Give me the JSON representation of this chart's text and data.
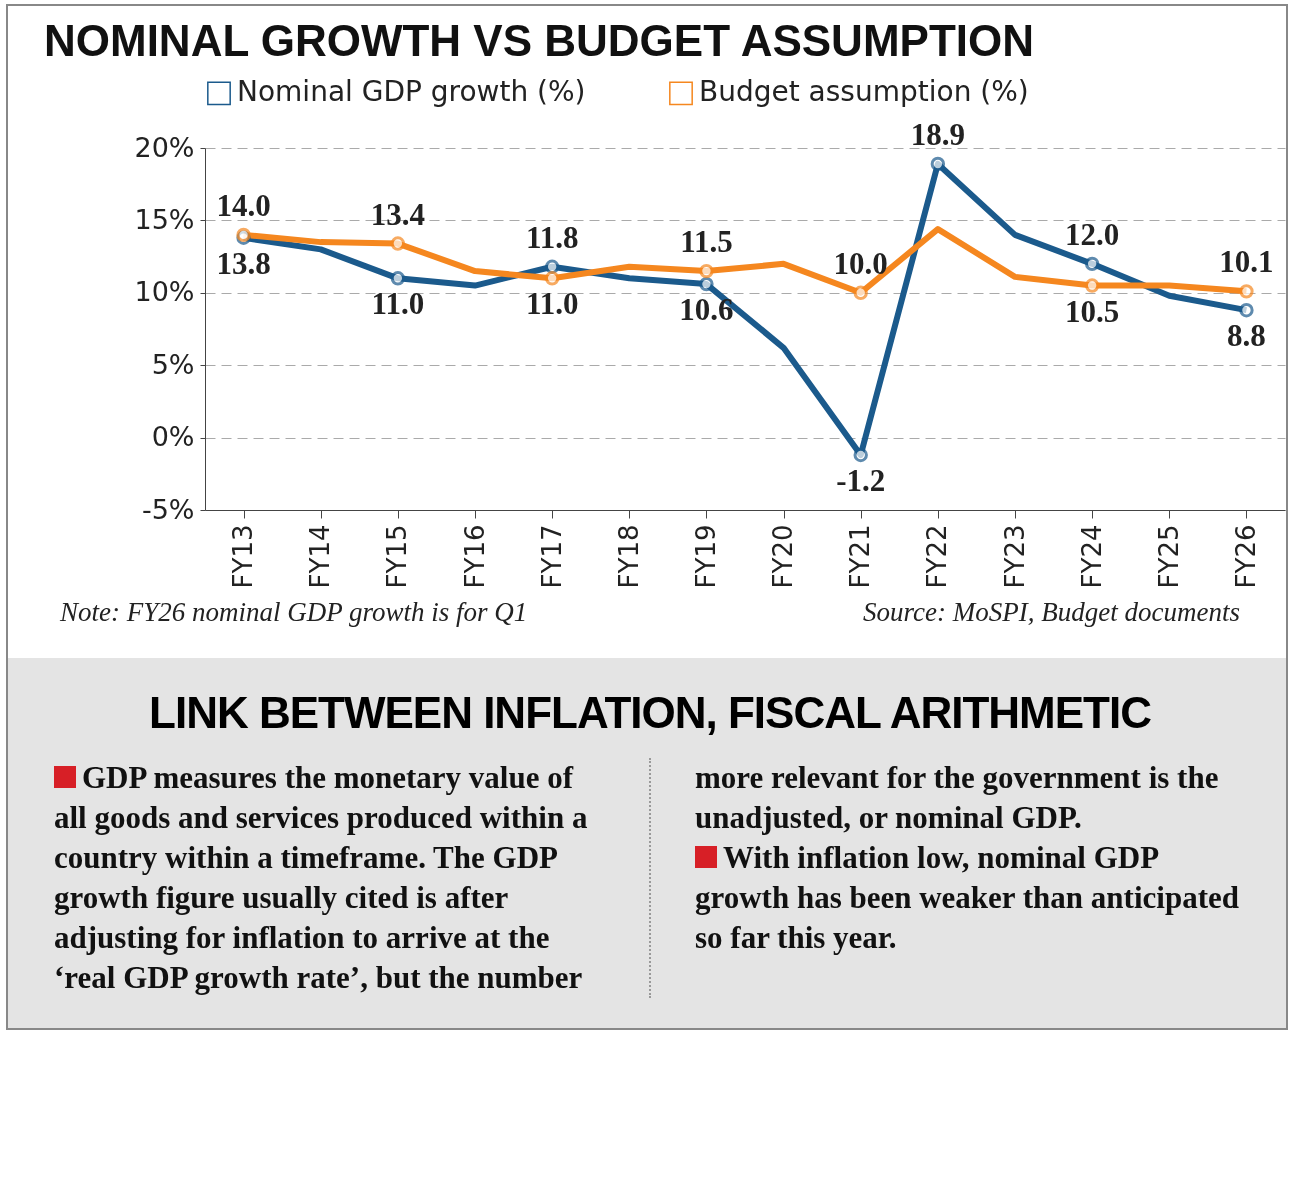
{
  "chart_data": [
    {
      "type": "line",
      "title": "NOMINAL GROWTH VS BUDGET ASSUMPTION",
      "categories": [
        "FY13",
        "FY14",
        "FY15",
        "FY16",
        "FY17",
        "FY18",
        "FY19",
        "FY20",
        "FY21",
        "FY22",
        "FY23",
        "FY24",
        "FY25",
        "FY26"
      ],
      "series": [
        {
          "name": "Nominal GDP growth (%)",
          "color": "#1b5a8c",
          "values": [
            13.8,
            13.0,
            11.0,
            10.5,
            11.8,
            11.0,
            10.6,
            6.2,
            -1.2,
            18.9,
            14.0,
            12.0,
            9.8,
            8.8
          ],
          "value_labels": [
            "13.8",
            null,
            "11.0",
            null,
            "11.8",
            null,
            "10.6",
            null,
            "-1.2",
            "18.9",
            null,
            "12.0",
            null,
            "8.8"
          ]
        },
        {
          "name": "Budget assumption (%)",
          "color": "#f5871f",
          "values": [
            14.0,
            13.5,
            13.4,
            11.5,
            11.0,
            11.8,
            11.5,
            12.0,
            10.0,
            14.4,
            11.1,
            10.5,
            10.5,
            10.1
          ],
          "value_labels": [
            "14.0",
            null,
            "13.4",
            null,
            "11.0",
            null,
            "11.5",
            null,
            "10.0",
            null,
            null,
            "10.5",
            null,
            "10.1"
          ]
        }
      ],
      "ylim": [
        -5,
        20
      ],
      "yticks": [
        {
          "value": -5,
          "label": "-5%"
        },
        {
          "value": 0,
          "label": "0%"
        },
        {
          "value": 5,
          "label": "5%"
        },
        {
          "value": 10,
          "label": "10%"
        },
        {
          "value": 15,
          "label": "15%"
        },
        {
          "value": 20,
          "label": "20%"
        }
      ],
      "grid": "y",
      "legend": "top left",
      "marker": "circle",
      "line_style": "solid",
      "annotations": [
        "Note: FY26 nominal GDP growth is for Q1",
        "Source: MoSPI, Budget documents"
      ]
    },
    {
      "type": "other",
      "title": "LINK BETWEEN INFLATION, FISCAL ARITHMETIC",
      "annotations": [
        "GDP measures the monetary value of all goods and services produced within a country within a timeframe. The GDP growth figure usually cited is after adjusting for inflation to arrive at the ‘real GDP growth rate’, but the number more relevant for the government is the unadjusted, or nominal GDP.",
        "With inflation low, nominal GDP growth has been weaker than anticipated so far this year."
      ]
    }
  ]
}
